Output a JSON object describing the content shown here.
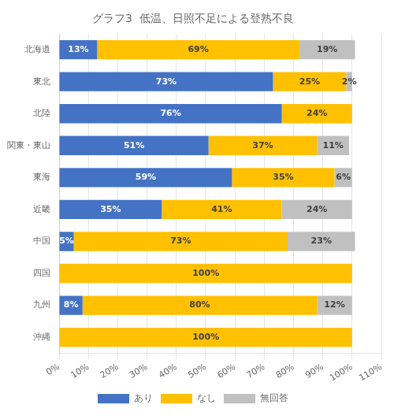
{
  "chart_data": {
    "type": "bar",
    "orientation": "horizontal",
    "stacked": true,
    "title": "グラフ3  低温、日照不足による登熟不良",
    "categories": [
      "北海道",
      "東北",
      "北陸",
      "関東・東山",
      "東海",
      "近畿",
      "中国",
      "四国",
      "九州",
      "沖縄"
    ],
    "series": [
      {
        "name": "あり",
        "color": "#4472C4",
        "values": [
          13,
          73,
          76,
          51,
          59,
          35,
          5,
          0,
          8,
          0
        ],
        "value_labels": [
          "13%",
          "73%",
          "76%",
          "51%",
          "59%",
          "35%",
          "5%",
          null,
          "8%",
          null
        ]
      },
      {
        "name": "なし",
        "color": "#FFC000",
        "values": [
          69,
          25,
          24,
          37,
          35,
          41,
          73,
          100,
          80,
          100
        ],
        "value_labels": [
          "69%",
          "25%",
          "24%",
          "37%",
          "35%",
          "41%",
          "73%",
          "100%",
          "80%",
          "100%"
        ]
      },
      {
        "name": "無回答",
        "color": "#C0C0C0",
        "values": [
          19,
          2,
          0,
          11,
          6,
          24,
          23,
          0,
          12,
          0
        ],
        "value_labels": [
          "19%",
          "2%",
          null,
          "11%",
          "6%",
          "24%",
          "23%",
          null,
          "12%",
          null
        ]
      }
    ],
    "xlim": [
      0,
      110
    ],
    "xticks": [
      {
        "value": 0,
        "label": "0%"
      },
      {
        "value": 10,
        "label": "10%"
      },
      {
        "value": 20,
        "label": "20%"
      },
      {
        "value": 30,
        "label": "30%"
      },
      {
        "value": 40,
        "label": "40%"
      },
      {
        "value": 50,
        "label": "50%"
      },
      {
        "value": 60,
        "label": "60%"
      },
      {
        "value": 70,
        "label": "70%"
      },
      {
        "value": 80,
        "label": "80%"
      },
      {
        "value": 90,
        "label": "90%"
      },
      {
        "value": 100,
        "label": "100%"
      },
      {
        "value": 110,
        "label": "110%"
      }
    ],
    "grid": true,
    "legend": "bottom",
    "data_labels": true
  }
}
